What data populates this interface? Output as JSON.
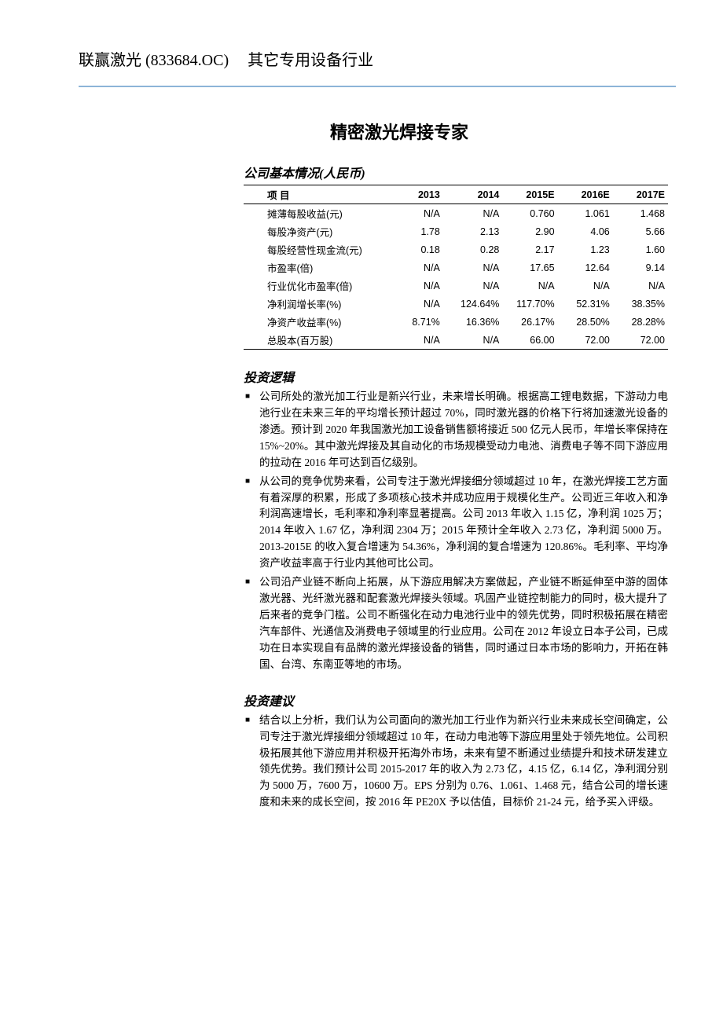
{
  "header": {
    "company_name_code": "联赢激光 (833684.OC)",
    "industry": "其它专用设备行业"
  },
  "main_title": "精密激光焊接专家",
  "table": {
    "title": "公司基本情况(人民币)",
    "columns": [
      "项  目",
      "2013",
      "2014",
      "2015E",
      "2016E",
      "2017E"
    ],
    "col_widths": [
      "34%",
      "13%",
      "14%",
      "13%",
      "13%",
      "13%"
    ],
    "rows": [
      [
        "摊薄每股收益(元)",
        "N/A",
        "N/A",
        "0.760",
        "1.061",
        "1.468"
      ],
      [
        "每股净资产(元)",
        "1.78",
        "2.13",
        "2.90",
        "4.06",
        "5.66"
      ],
      [
        "每股经营性现金流(元)",
        "0.18",
        "0.28",
        "2.17",
        "1.23",
        "1.60"
      ],
      [
        "市盈率(倍)",
        "N/A",
        "N/A",
        "17.65",
        "12.64",
        "9.14"
      ],
      [
        "行业优化市盈率(倍)",
        "N/A",
        "N/A",
        "N/A",
        "N/A",
        "N/A"
      ],
      [
        "净利润增长率(%)",
        "N/A",
        "124.64%",
        "117.70%",
        "52.31%",
        "38.35%"
      ],
      [
        "净资产收益率(%)",
        "8.71%",
        "16.36%",
        "26.17%",
        "28.50%",
        "28.28%"
      ],
      [
        "总股本(百万股)",
        "N/A",
        "N/A",
        "66.00",
        "72.00",
        "72.00"
      ]
    ]
  },
  "logic_section": {
    "title": "投资逻辑",
    "bullets": [
      "公司所处的激光加工行业是新兴行业，未来增长明确。根据高工锂电数据，下游动力电池行业在未来三年的平均增长预计超过 70%，同时激光器的价格下行将加速激光设备的渗透。预计到 2020 年我国激光加工设备销售额将接近 500 亿元人民币，年增长率保持在 15%~20%。其中激光焊接及其自动化的市场规模受动力电池、消费电子等不同下游应用的拉动在 2016 年可达到百亿级别。",
      "从公司的竞争优势来看，公司专注于激光焊接细分领域超过 10 年，在激光焊接工艺方面有着深厚的积累，形成了多项核心技术并成功应用于规模化生产。公司近三年收入和净利润高速增长，毛利率和净利率显著提高。公司 2013 年收入 1.15 亿，净利润 1025 万；2014 年收入 1.67 亿，净利润 2304 万；2015 年预计全年收入 2.73 亿，净利润 5000 万。2013-2015E 的收入复合增速为 54.36%，净利润的复合增速为 120.86%。毛利率、平均净资产收益率高于行业内其他可比公司。",
      "公司沿产业链不断向上拓展，从下游应用解决方案做起，产业链不断延伸至中游的固体激光器、光纤激光器和配套激光焊接头领域。巩固产业链控制能力的同时，极大提升了后来者的竞争门槛。公司不断强化在动力电池行业中的领先优势，同时积极拓展在精密汽车部件、光通信及消费电子领域里的行业应用。公司在 2012 年设立日本子公司，已成功在日本实现自有品牌的激光焊接设备的销售，同时通过日本市场的影响力，开拓在韩国、台湾、东南亚等地的市场。"
    ]
  },
  "advice_section": {
    "title": "投资建议",
    "bullets": [
      "结合以上分析，我们认为公司面向的激光加工行业作为新兴行业未来成长空间确定，公司专注于激光焊接细分领域超过 10 年，在动力电池等下游应用里处于领先地位。公司积极拓展其他下游应用并积极开拓海外市场，未来有望不断通过业绩提升和技术研发建立领先优势。我们预计公司 2015-2017 年的收入为 2.73 亿，4.15 亿，6.14 亿，净利润分别为 5000 万，7600 万，10600 万。EPS 分别为 0.76、1.061、1.468 元，结合公司的增长速度和未来的成长空间，按 2016 年 PE20X 予以估值，目标价 21-24 元，给予买入评级。"
    ]
  },
  "colors": {
    "divider": "#8db4d8",
    "text": "#000000",
    "background": "#ffffff"
  }
}
